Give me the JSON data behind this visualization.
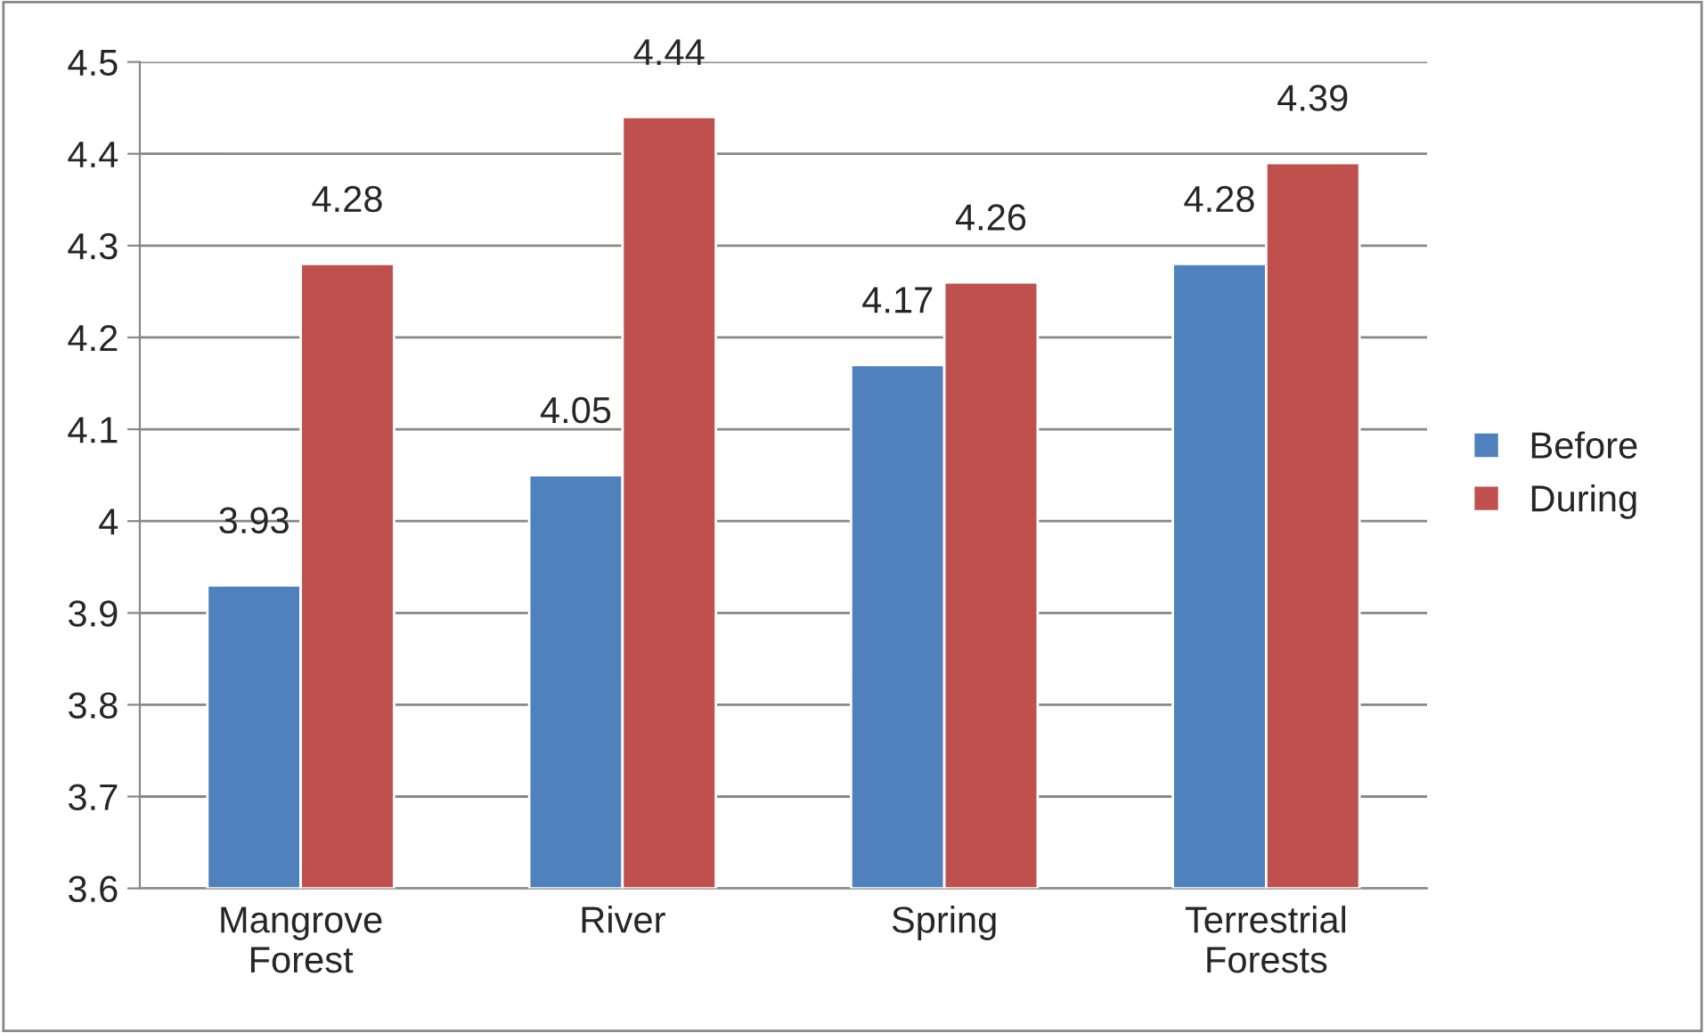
{
  "chart_data": {
    "type": "bar",
    "categories": [
      "Mangrove\nForest",
      "River",
      "Spring",
      "Terrestrial\nForests"
    ],
    "series": [
      {
        "name": "Before",
        "color": "#4f81bd",
        "values": [
          3.93,
          4.05,
          4.17,
          4.28
        ]
      },
      {
        "name": "During",
        "color": "#c0504d",
        "values": [
          4.28,
          4.44,
          4.26,
          4.39
        ]
      }
    ],
    "ylim": [
      3.6,
      4.5
    ],
    "yticks": [
      3.6,
      3.7,
      3.8,
      3.9,
      4,
      4.1,
      4.2,
      4.3,
      4.4,
      4.5
    ],
    "grid": "y",
    "legend": "right",
    "data_labels": true
  }
}
